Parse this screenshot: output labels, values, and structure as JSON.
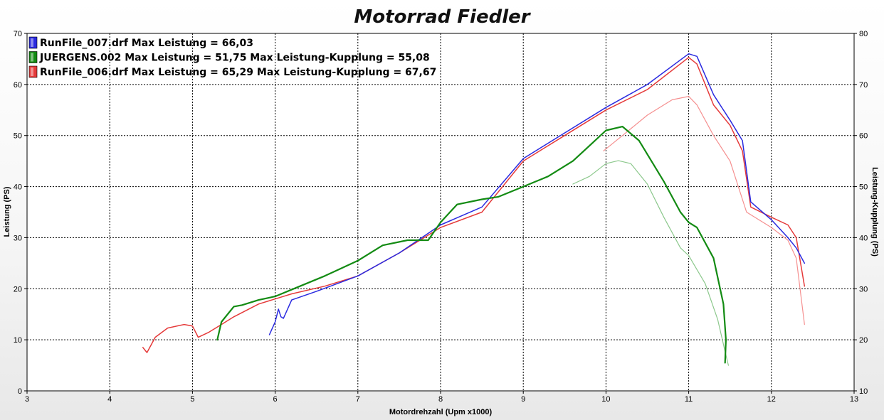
{
  "chart_data": {
    "type": "line",
    "title": "Motorrad Fiedler",
    "xlabel": "Motordrehzahl (Upm x1000)",
    "ylabel": "Leistung (PS)",
    "y2label": "Leistung-Kupplung (PS)",
    "xlim": [
      3,
      13
    ],
    "ylim": [
      0,
      70
    ],
    "y2lim": [
      10,
      80
    ],
    "xticks": [
      "3",
      "4",
      "5",
      "6",
      "7",
      "8",
      "9",
      "10",
      "11",
      "12",
      "13"
    ],
    "yticks": [
      "0",
      "10",
      "20",
      "30",
      "40",
      "50",
      "60",
      "70"
    ],
    "y2ticks": [
      "10",
      "20",
      "30",
      "40",
      "50",
      "60",
      "70",
      "80"
    ],
    "grid": true,
    "legend_position": "top-left",
    "series": [
      {
        "name": "RunFile_007.drf Max Leistung = 66,03",
        "color": "#2a2ae0",
        "axis": "left",
        "x": [
          5.93,
          6.0,
          6.04,
          6.07,
          6.1,
          6.2,
          6.5,
          7.0,
          7.5,
          8.0,
          8.5,
          9.0,
          9.5,
          10.0,
          10.5,
          11.0,
          11.1,
          11.3,
          11.5,
          11.65,
          11.75,
          12.0,
          12.2,
          12.3,
          12.4
        ],
        "y": [
          11,
          13.5,
          16,
          14.5,
          14.2,
          17.8,
          19.5,
          22.5,
          27,
          32.5,
          36,
          45.5,
          50.5,
          55.5,
          60,
          66,
          65.5,
          58,
          53,
          49,
          37,
          33.5,
          30,
          28,
          25
        ]
      },
      {
        "name": "JUERGENS.002 Max Leistung = 51,75  Max Leistung-Kupplung = 55,08",
        "color": "#138b13",
        "axis": "left",
        "x": [
          5.3,
          5.35,
          5.5,
          5.6,
          5.8,
          6.0,
          6.3,
          6.6,
          7.0,
          7.3,
          7.6,
          7.85,
          8.0,
          8.2,
          8.5,
          8.7,
          9.0,
          9.3,
          9.6,
          9.8,
          10.0,
          10.2,
          10.4,
          10.7,
          10.9,
          11.0,
          11.1,
          11.3,
          11.42,
          11.45,
          11.44
        ],
        "y": [
          10,
          13.5,
          16.5,
          16.8,
          17.8,
          18.5,
          20.5,
          22.5,
          25.5,
          28.5,
          29.5,
          29.5,
          33,
          36.5,
          37.5,
          38,
          40,
          42,
          45,
          48,
          51,
          51.75,
          49,
          41,
          35,
          33,
          32,
          26,
          17,
          10,
          5.5
        ]
      },
      {
        "name": "RunFile_006.drf Max Leistung = 65,29  Max Leistung-Kupplung = 67,67",
        "color": "#e53a3a",
        "axis": "left",
        "x": [
          4.4,
          4.45,
          4.55,
          4.7,
          4.9,
          5.0,
          5.07,
          5.2,
          5.35,
          5.5,
          5.8,
          6.2,
          6.6,
          7.0,
          7.5,
          8.0,
          8.5,
          9.0,
          9.5,
          10.0,
          10.5,
          11.0,
          11.1,
          11.3,
          11.5,
          11.65,
          11.75,
          12.0,
          12.2,
          12.3,
          12.4
        ],
        "y": [
          8.5,
          7.5,
          10.5,
          12.3,
          13,
          12.7,
          10.5,
          11.5,
          13,
          14.5,
          17,
          19,
          20.5,
          22.5,
          27,
          32,
          35,
          45,
          50,
          55,
          59,
          65.29,
          64,
          56,
          52,
          47,
          36,
          34,
          32.5,
          30,
          20.5
        ]
      },
      {
        "name": "",
        "color": "#f58f8f",
        "axis": "right",
        "x": [
          9.97,
          10.2,
          10.5,
          10.8,
          11.0,
          11.1,
          11.3,
          11.5,
          11.7,
          12.0,
          12.2,
          12.3,
          12.4
        ],
        "y": [
          57,
          60,
          64,
          67,
          67.67,
          66,
          60,
          55,
          45,
          42,
          39.5,
          36,
          23
        ]
      },
      {
        "name": "",
        "color": "#8cc88c",
        "axis": "right",
        "x": [
          9.6,
          9.8,
          10.0,
          10.15,
          10.3,
          10.5,
          10.7,
          10.9,
          11.0,
          11.2,
          11.35,
          11.45,
          11.48
        ],
        "y": [
          50.5,
          52,
          54.5,
          55.08,
          54.5,
          50.5,
          44,
          38,
          36.5,
          31,
          24,
          17,
          15
        ]
      }
    ]
  }
}
